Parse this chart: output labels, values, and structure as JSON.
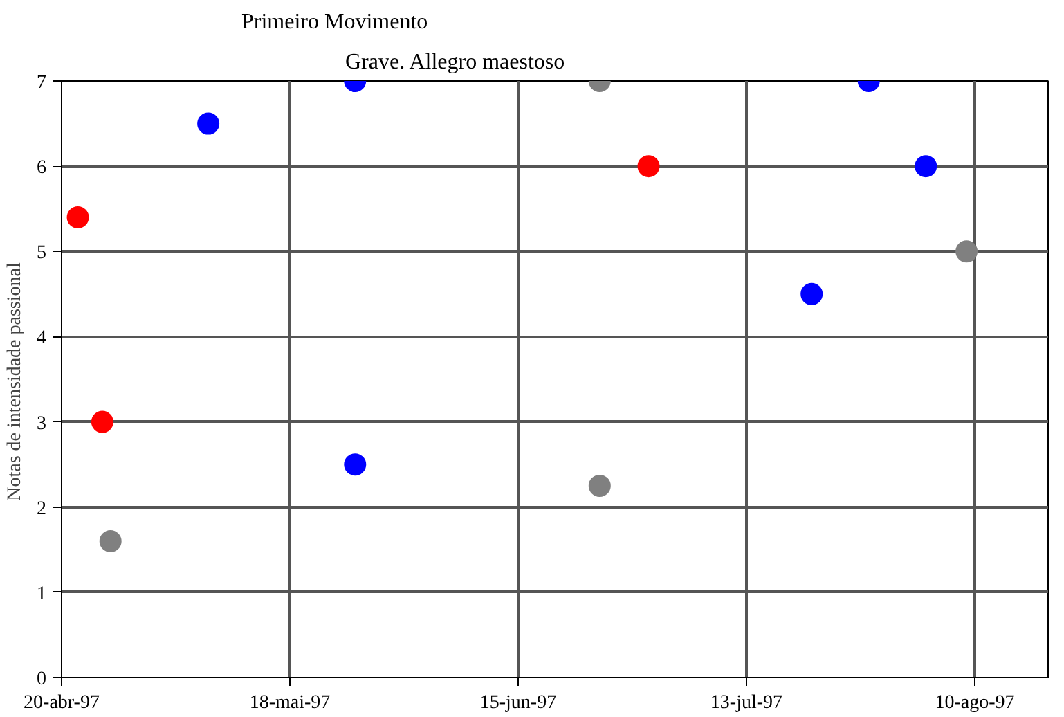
{
  "chart_data": {
    "type": "scatter",
    "title": "Primeiro Movimento",
    "subtitle": "Grave. Allegro maestoso",
    "ylabel": "Notas  de intensidade passional",
    "series": [
      {
        "color": "#ff0000",
        "x": [
          "1997-04-22",
          "1997-04-25",
          "1997-07-01"
        ],
        "values": [
          5.4,
          3,
          6
        ]
      },
      {
        "color": "#0000ff",
        "x": [
          "1997-05-08",
          "1997-05-26",
          "1997-05-26",
          "1997-07-21",
          "1997-07-28",
          "1997-08-04"
        ],
        "values": [
          6.5,
          7,
          2.5,
          4.5,
          7,
          6
        ]
      },
      {
        "color": "#808080",
        "x": [
          "1997-04-26",
          "1997-06-25",
          "1997-06-25",
          "1997-08-09"
        ],
        "values": [
          1.6,
          7,
          2.25,
          5
        ]
      }
    ],
    "xlim": [
      "1997-04-20",
      "1997-08-19"
    ],
    "ylim": [
      0,
      7
    ],
    "xticks": [
      {
        "value": "1997-04-20",
        "label": "20-abr-97"
      },
      {
        "value": "1997-05-18",
        "label": "18-mai-97"
      },
      {
        "value": "1997-06-15",
        "label": "15-jun-97"
      },
      {
        "value": "1997-07-13",
        "label": "13-jul-97"
      },
      {
        "value": "1997-08-10",
        "label": "10-ago-97"
      }
    ],
    "yticks": [
      0,
      1,
      2,
      3,
      4,
      5,
      6,
      7
    ],
    "grid": true,
    "marker": "circle"
  }
}
